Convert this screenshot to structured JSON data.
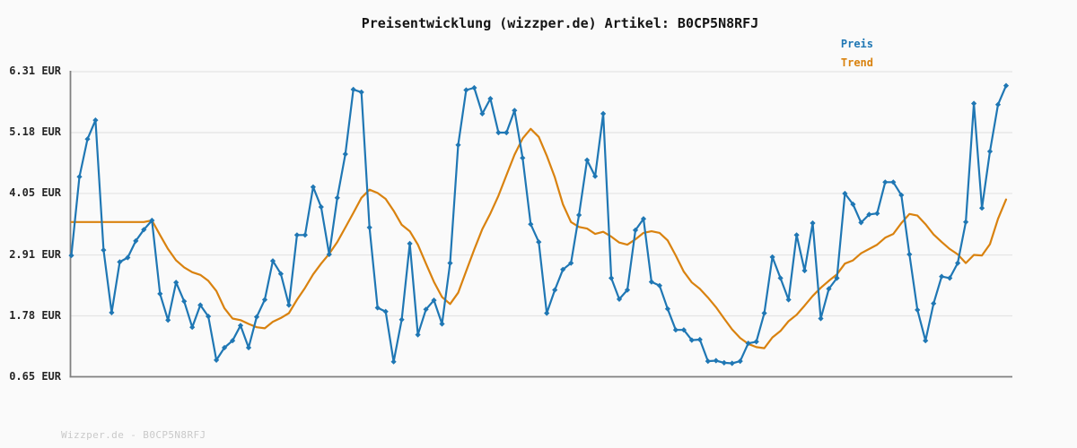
{
  "title": "Preisentwicklung (wizzper.de) Artikel: B0CP5N8RFJ",
  "watermark": "Wizzper.de - B0CP5N8RFJ",
  "legend": {
    "items": [
      {
        "label": "Preis",
        "color": "#1f77b4"
      },
      {
        "label": "Trend",
        "color": "#d9820f"
      }
    ]
  },
  "colors": {
    "background": "#fafafa",
    "grid": "#e4e4e4",
    "axis": "#808080",
    "title_text": "#141414",
    "tick_text": "#262626",
    "watermark_text": "#c9c9c9",
    "price_line": "#1f77b4",
    "trend_line": "#d9820f"
  },
  "chart_data": {
    "type": "line",
    "title": "Preisentwicklung (wizzper.de) Artikel: B0CP5N8RFJ",
    "currency": "EUR",
    "ylim": [
      0.65,
      6.31
    ],
    "y_ticks": [
      {
        "value": 6.31,
        "label": "6.31 EUR"
      },
      {
        "value": 5.18,
        "label": "5.18 EUR"
      },
      {
        "value": 4.05,
        "label": "4.05 EUR"
      },
      {
        "value": 2.91,
        "label": "2.91 EUR"
      },
      {
        "value": 1.78,
        "label": "1.78 EUR"
      },
      {
        "value": 0.65,
        "label": "0.65 EUR"
      }
    ],
    "x_tick_labels": [],
    "grid": "horizontal",
    "legend_position": "top-right",
    "series": [
      {
        "name": "Preis",
        "color": "#1f77b4",
        "marker": "diamond",
        "values": [
          2.9,
          4.36,
          5.06,
          5.41,
          3.0,
          1.84,
          2.78,
          2.86,
          3.17,
          3.38,
          3.55,
          2.19,
          1.7,
          2.4,
          2.05,
          1.57,
          1.98,
          1.77,
          0.96,
          1.19,
          1.32,
          1.6,
          1.19,
          1.76,
          2.08,
          2.8,
          2.56,
          1.98,
          3.28,
          3.28,
          4.17,
          3.8,
          2.92,
          3.97,
          4.78,
          5.98,
          5.93,
          3.42,
          1.93,
          1.86,
          0.93,
          1.71,
          3.12,
          1.43,
          1.9,
          2.07,
          1.63,
          2.76,
          4.95,
          5.97,
          6.01,
          5.53,
          5.81,
          5.18,
          5.18,
          5.59,
          4.71,
          3.48,
          3.15,
          1.83,
          2.26,
          2.64,
          2.76,
          3.65,
          4.67,
          4.37,
          5.53,
          2.48,
          2.09,
          2.26,
          3.37,
          3.58,
          2.41,
          2.34,
          1.91,
          1.52,
          1.52,
          1.33,
          1.34,
          0.94,
          0.95,
          0.91,
          0.9,
          0.94,
          1.27,
          1.3,
          1.83,
          2.87,
          2.48,
          2.08,
          3.28,
          2.62,
          3.5,
          1.73,
          2.28,
          2.48,
          4.05,
          3.85,
          3.51,
          3.66,
          3.68,
          4.26,
          4.26,
          4.02,
          2.92,
          1.89,
          1.32,
          2.01,
          2.51,
          2.48,
          2.76,
          3.52,
          5.72,
          3.78,
          4.83,
          5.7,
          6.05
        ]
      },
      {
        "name": "Trend",
        "color": "#d9820f",
        "marker": "none",
        "values": [
          3.52,
          3.52,
          3.52,
          3.52,
          3.52,
          3.52,
          3.52,
          3.52,
          3.52,
          3.52,
          3.55,
          3.28,
          3.02,
          2.81,
          2.68,
          2.59,
          2.54,
          2.43,
          2.24,
          1.92,
          1.73,
          1.7,
          1.63,
          1.57,
          1.55,
          1.67,
          1.74,
          1.83,
          2.08,
          2.3,
          2.55,
          2.75,
          2.93,
          3.15,
          3.42,
          3.69,
          3.97,
          4.12,
          4.06,
          3.95,
          3.73,
          3.47,
          3.35,
          3.1,
          2.75,
          2.41,
          2.13,
          2.0,
          2.21,
          2.61,
          3.01,
          3.39,
          3.68,
          4.01,
          4.39,
          4.77,
          5.07,
          5.25,
          5.1,
          4.75,
          4.35,
          3.85,
          3.52,
          3.43,
          3.4,
          3.3,
          3.34,
          3.25,
          3.14,
          3.1,
          3.2,
          3.32,
          3.35,
          3.32,
          3.18,
          2.9,
          2.6,
          2.4,
          2.28,
          2.12,
          1.94,
          1.73,
          1.53,
          1.37,
          1.26,
          1.2,
          1.18,
          1.38,
          1.5,
          1.68,
          1.8,
          1.97,
          2.15,
          2.3,
          2.43,
          2.55,
          2.75,
          2.81,
          2.94,
          3.02,
          3.1,
          3.23,
          3.3,
          3.5,
          3.67,
          3.64,
          3.48,
          3.29,
          3.15,
          3.02,
          2.92,
          2.76,
          2.91,
          2.9,
          3.11,
          3.58,
          3.94
        ]
      }
    ]
  }
}
